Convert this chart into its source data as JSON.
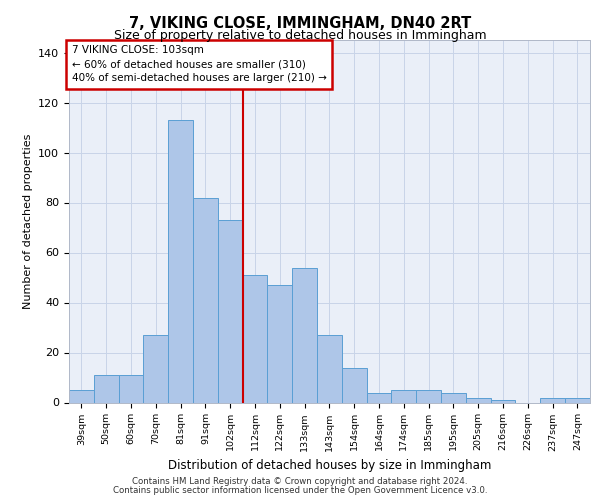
{
  "title1": "7, VIKING CLOSE, IMMINGHAM, DN40 2RT",
  "title2": "Size of property relative to detached houses in Immingham",
  "xlabel": "Distribution of detached houses by size in Immingham",
  "ylabel": "Number of detached properties",
  "categories": [
    "39sqm",
    "50sqm",
    "60sqm",
    "70sqm",
    "81sqm",
    "91sqm",
    "102sqm",
    "112sqm",
    "122sqm",
    "133sqm",
    "143sqm",
    "154sqm",
    "164sqm",
    "174sqm",
    "185sqm",
    "195sqm",
    "205sqm",
    "216sqm",
    "226sqm",
    "237sqm",
    "247sqm"
  ],
  "values": [
    5,
    11,
    11,
    27,
    113,
    82,
    73,
    51,
    47,
    54,
    27,
    14,
    4,
    5,
    5,
    4,
    2,
    1,
    0,
    2,
    2
  ],
  "bar_color": "#aec6e8",
  "bar_edge_color": "#5a9fd4",
  "vline_color": "#cc0000",
  "annotation_text": "7 VIKING CLOSE: 103sqm\n← 60% of detached houses are smaller (310)\n40% of semi-detached houses are larger (210) →",
  "annotation_box_color": "#cc0000",
  "ylim": [
    0,
    145
  ],
  "yticks": [
    0,
    20,
    40,
    60,
    80,
    100,
    120,
    140
  ],
  "grid_color": "#c8d4e8",
  "bg_color": "#eaeff8",
  "footer1": "Contains HM Land Registry data © Crown copyright and database right 2024.",
  "footer2": "Contains public sector information licensed under the Open Government Licence v3.0."
}
